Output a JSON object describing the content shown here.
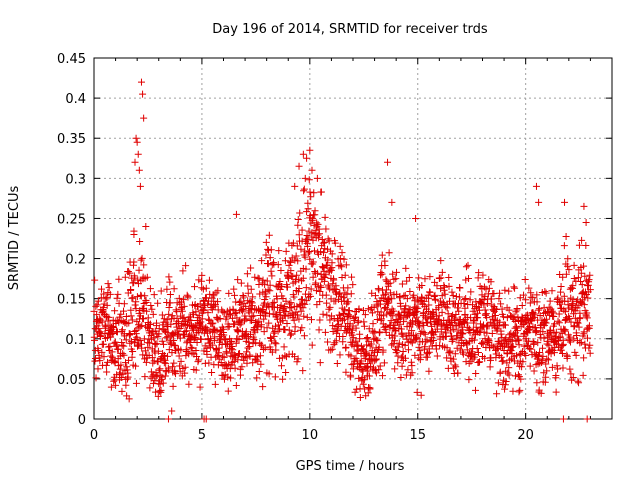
{
  "chart_data": {
    "type": "scatter",
    "title": "Day 196 of 2014, SRMTID for receiver trds",
    "xlabel": "GPS time / hours",
    "ylabel": "SRMTID / TECUs",
    "xlim": [
      0,
      24
    ],
    "ylim": [
      0,
      0.45
    ],
    "x_ticks": [
      0,
      5,
      10,
      15,
      20
    ],
    "y_ticks": [
      0,
      0.05,
      0.1,
      0.15,
      0.2,
      0.25,
      0.3,
      0.35,
      0.4,
      0.45
    ],
    "x_tick_labels": [
      "0",
      "5",
      "10",
      "15",
      "20"
    ],
    "y_tick_labels": [
      "0",
      "0.05",
      "0.1",
      "0.15",
      "0.2",
      "0.25",
      "0.3",
      "0.35",
      "0.4",
      "0.45"
    ],
    "grid": true,
    "marker": "+",
    "marker_color": "#e00000",
    "series": [
      {
        "name": "SRMTID",
        "sample_count": 2400,
        "envelope": [
          [
            0.0,
            0.11,
            0.03
          ],
          [
            0.5,
            0.12,
            0.03
          ],
          [
            1.0,
            0.08,
            0.03
          ],
          [
            1.5,
            0.1,
            0.04
          ],
          [
            2.0,
            0.14,
            0.05
          ],
          [
            2.5,
            0.11,
            0.03
          ],
          [
            3.0,
            0.08,
            0.03
          ],
          [
            3.5,
            0.1,
            0.03
          ],
          [
            4.0,
            0.11,
            0.03
          ],
          [
            5.0,
            0.12,
            0.03
          ],
          [
            6.0,
            0.09,
            0.03
          ],
          [
            7.0,
            0.12,
            0.03
          ],
          [
            8.0,
            0.13,
            0.04
          ],
          [
            9.0,
            0.15,
            0.04
          ],
          [
            9.5,
            0.17,
            0.05
          ],
          [
            10.0,
            0.21,
            0.05
          ],
          [
            10.5,
            0.19,
            0.05
          ],
          [
            11.0,
            0.16,
            0.04
          ],
          [
            12.0,
            0.11,
            0.03
          ],
          [
            12.5,
            0.07,
            0.03
          ],
          [
            13.0,
            0.1,
            0.03
          ],
          [
            13.5,
            0.15,
            0.04
          ],
          [
            14.0,
            0.12,
            0.03
          ],
          [
            15.0,
            0.11,
            0.03
          ],
          [
            16.0,
            0.13,
            0.03
          ],
          [
            17.0,
            0.11,
            0.03
          ],
          [
            18.0,
            0.12,
            0.03
          ],
          [
            19.0,
            0.1,
            0.03
          ],
          [
            20.0,
            0.11,
            0.03
          ],
          [
            21.0,
            0.1,
            0.03
          ],
          [
            22.0,
            0.13,
            0.04
          ],
          [
            23.0,
            0.14,
            0.04
          ]
        ],
        "notable_points": [
          [
            1.85,
            0.23
          ],
          [
            1.9,
            0.32
          ],
          [
            1.95,
            0.35
          ],
          [
            2.0,
            0.345
          ],
          [
            2.05,
            0.33
          ],
          [
            2.1,
            0.31
          ],
          [
            2.15,
            0.29
          ],
          [
            2.2,
            0.42
          ],
          [
            2.25,
            0.405
          ],
          [
            2.3,
            0.375
          ],
          [
            2.4,
            0.24
          ],
          [
            3.45,
            0.0
          ],
          [
            3.6,
            0.01
          ],
          [
            5.1,
            0.0
          ],
          [
            5.2,
            0.0
          ],
          [
            6.6,
            0.255
          ],
          [
            9.3,
            0.29
          ],
          [
            9.5,
            0.315
          ],
          [
            9.7,
            0.33
          ],
          [
            9.85,
            0.325
          ],
          [
            10.0,
            0.335
          ],
          [
            10.1,
            0.31
          ],
          [
            13.6,
            0.32
          ],
          [
            13.8,
            0.27
          ],
          [
            14.9,
            0.25
          ],
          [
            20.5,
            0.29
          ],
          [
            20.6,
            0.27
          ],
          [
            21.8,
            0.27
          ],
          [
            22.7,
            0.265
          ],
          [
            22.8,
            0.245
          ],
          [
            21.75,
            0.0
          ],
          [
            22.85,
            0.0
          ]
        ]
      }
    ]
  }
}
